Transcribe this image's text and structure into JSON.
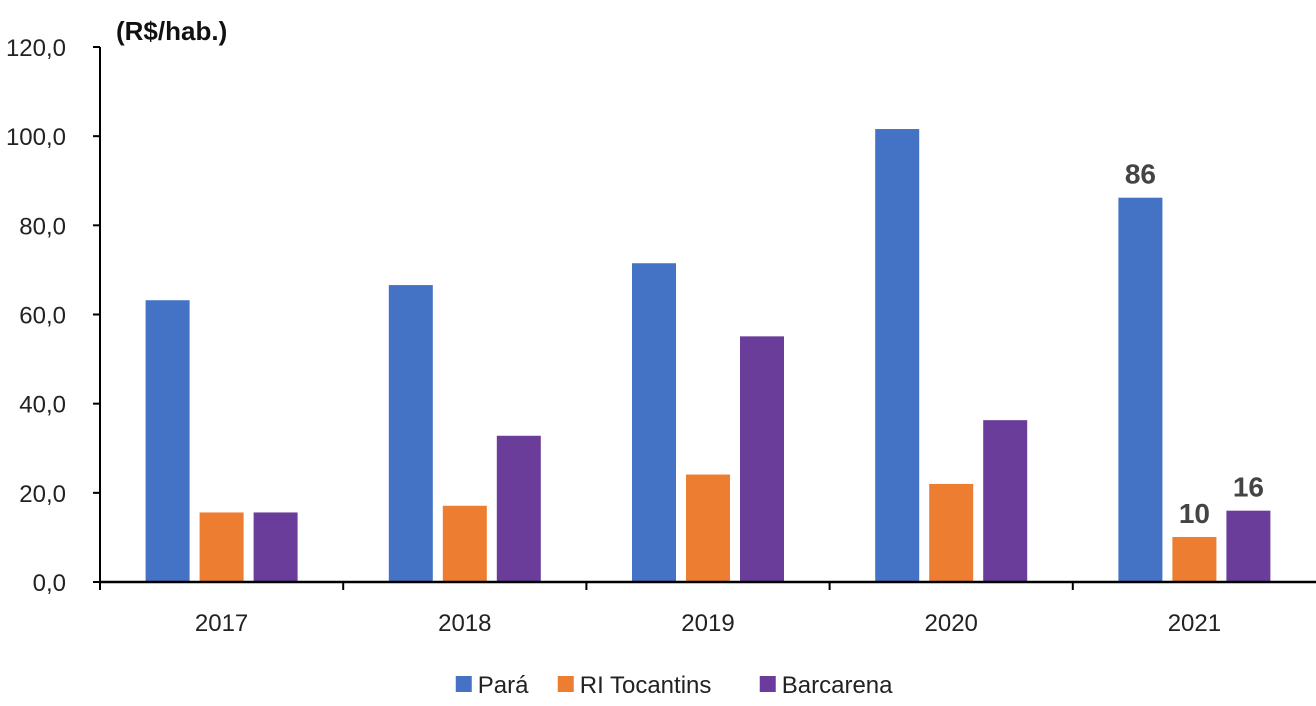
{
  "chart_data": {
    "type": "bar",
    "unit_label": "(R$/hab.)",
    "categories": [
      "2017",
      "2018",
      "2019",
      "2020",
      "2021"
    ],
    "series": [
      {
        "name": "Pará",
        "color": "#4472C4",
        "values": [
          63.2,
          66.6,
          71.5,
          101.6,
          86.2
        ]
      },
      {
        "name": "RI Tocantins",
        "color": "#ED7D31",
        "values": [
          15.6,
          17.1,
          24.1,
          22.0,
          10.1
        ]
      },
      {
        "name": "Barcarena",
        "color": "#6A3D9A",
        "values": [
          15.6,
          32.8,
          55.1,
          36.3,
          16.0
        ]
      }
    ],
    "data_labels": [
      {
        "category": "2021",
        "series": "Pará",
        "text": "86"
      },
      {
        "category": "2021",
        "series": "RI Tocantins",
        "text": "10"
      },
      {
        "category": "2021",
        "series": "Barcarena",
        "text": "16"
      }
    ],
    "y_ticks": [
      "0,0",
      "20,0",
      "40,0",
      "60,0",
      "80,0",
      "100,0",
      "120,0"
    ],
    "ylim": [
      0,
      120
    ],
    "grid": false,
    "legend_position": "bottom"
  }
}
